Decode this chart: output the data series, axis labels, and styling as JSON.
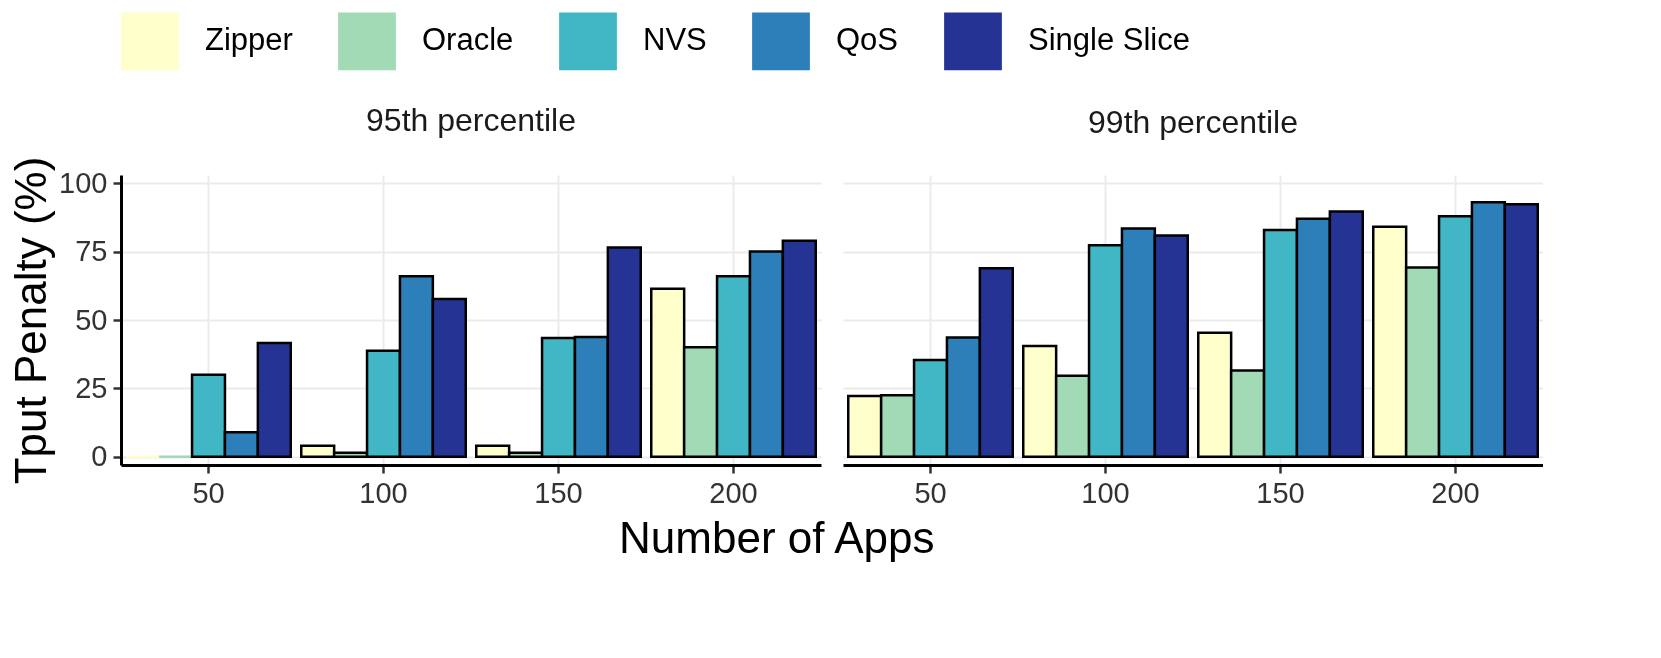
{
  "chart_data": [
    {
      "type": "bar",
      "title": "95th percentile",
      "xlabel": "Number of Apps",
      "ylabel": "Tput Penalty (%)",
      "categories": [
        "50",
        "100",
        "150",
        "200"
      ],
      "ylim": [
        -3,
        103
      ],
      "yticks": [
        0,
        25,
        50,
        75,
        100
      ],
      "grid": true,
      "legend": "top",
      "series": [
        {
          "name": "Zipper",
          "color": "#ffffcc",
          "values": [
            0,
            4,
            4,
            61.4
          ]
        },
        {
          "name": "Oracle",
          "color": "#a1dab4",
          "values": [
            0,
            1.5,
            1.5,
            40
          ]
        },
        {
          "name": "NVS",
          "color": "#41b6c4",
          "values": [
            30,
            38.8,
            43.4,
            66
          ]
        },
        {
          "name": "QoS",
          "color": "#2c7fb8",
          "values": [
            9,
            66,
            43.8,
            75
          ]
        },
        {
          "name": "Single Slice",
          "color": "#253494",
          "values": [
            41.6,
            57.7,
            76.5,
            79
          ]
        }
      ]
    },
    {
      "type": "bar",
      "title": "99th percentile",
      "categories": [
        "50",
        "100",
        "150",
        "200"
      ],
      "ylim": [
        -3,
        103
      ],
      "yticks": [
        0,
        25,
        50,
        75,
        100
      ],
      "grid": true,
      "legend": "top",
      "tick_labels": "x",
      "series": [
        {
          "name": "Zipper",
          "color": "#ffffcc",
          "values": [
            22.2,
            40.5,
            45.3,
            84.1
          ]
        },
        {
          "name": "Oracle",
          "color": "#a1dab4",
          "values": [
            22.5,
            29.6,
            31.5,
            69.2
          ]
        },
        {
          "name": "NVS",
          "color": "#41b6c4",
          "values": [
            35.4,
            77.3,
            82.9,
            87.9
          ]
        },
        {
          "name": "QoS",
          "color": "#2c7fb8",
          "values": [
            43.6,
            83.4,
            87,
            93
          ]
        },
        {
          "name": "Single Slice",
          "color": "#253494",
          "values": [
            68.9,
            80.9,
            89.7,
            92.3
          ]
        }
      ]
    }
  ]
}
